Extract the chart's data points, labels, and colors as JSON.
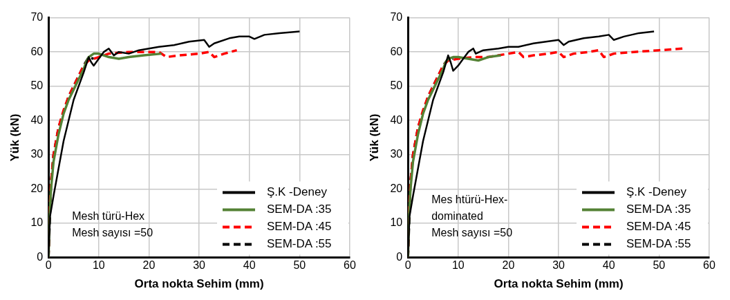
{
  "chart_data": [
    {
      "type": "line",
      "xlabel": "Orta nokta Sehim (mm)",
      "ylabel": "Yük (kN)",
      "xlim": [
        0,
        60
      ],
      "xticks": [
        0,
        10,
        20,
        30,
        40,
        50,
        60
      ],
      "ylim": [
        0,
        70
      ],
      "yticks": [
        0,
        10,
        20,
        30,
        40,
        50,
        60,
        70
      ],
      "grid": true,
      "legend": "bottom right",
      "marker": "none",
      "annotations": [
        "Mesh türü-Hex",
        "Mesh sayısı =50"
      ],
      "series": [
        {
          "name": "Ş.K -Deney",
          "color": "#000000",
          "line_style": "solid",
          "x": [
            0,
            0.3,
            1,
            2,
            3,
            4,
            5,
            6,
            7,
            8,
            8.5,
            9,
            10,
            11,
            12,
            13,
            14,
            16,
            18,
            20,
            22,
            25,
            28,
            31,
            32,
            33,
            36,
            38,
            40,
            41,
            43,
            46,
            50
          ],
          "values": [
            0,
            12,
            18,
            26,
            34,
            40,
            46,
            50,
            54,
            58.5,
            57,
            56,
            58,
            60,
            61,
            59,
            60,
            59.5,
            60.5,
            61,
            61.5,
            62,
            63,
            63.5,
            61.5,
            62.5,
            64,
            64.5,
            64.5,
            63.8,
            65,
            65.5,
            66
          ]
        },
        {
          "name": "SEM-DA :35",
          "color": "#548235",
          "line_style": "solid",
          "x": [
            0,
            0.2,
            0.5,
            1,
            2,
            3,
            4,
            5,
            6,
            7,
            7.5,
            8,
            9,
            10,
            12,
            14,
            16,
            19,
            22.5
          ],
          "values": [
            0,
            12,
            20,
            28,
            36,
            42,
            46,
            49,
            52,
            55,
            57,
            58.5,
            59.5,
            59.5,
            58.5,
            58,
            58.5,
            59,
            59.5
          ]
        },
        {
          "name": "SEM-DA :45",
          "color": "#ff0000",
          "line_style": "dashed",
          "x": [
            0,
            0.2,
            0.5,
            1,
            2,
            3,
            4,
            5,
            6,
            7,
            8,
            10,
            12,
            16,
            20,
            22,
            23.5,
            26,
            30,
            32,
            33,
            35,
            37.5
          ],
          "values": [
            0,
            14,
            22,
            30,
            38,
            43,
            47,
            50,
            53,
            56,
            57.5,
            58.5,
            59.5,
            60,
            60,
            60,
            58.5,
            59,
            59.5,
            60,
            58.5,
            59.5,
            60.5
          ]
        },
        {
          "name": "SEM-DA :55",
          "color": "#000000",
          "line_style": "dashed",
          "x": [
            0,
            0.5,
            1,
            2,
            4,
            6,
            7,
            8,
            9
          ],
          "values": [
            0,
            22,
            30,
            38,
            47,
            53,
            56,
            58.5,
            58
          ]
        }
      ]
    },
    {
      "type": "line",
      "xlabel": "Orta nokta Sehim (mm)",
      "ylabel": "Yük (kN)",
      "xlim": [
        0,
        60
      ],
      "xticks": [
        0,
        10,
        20,
        30,
        40,
        50,
        60
      ],
      "ylim": [
        0,
        70
      ],
      "yticks": [
        0,
        10,
        20,
        30,
        40,
        50,
        60,
        70
      ],
      "grid": true,
      "legend": "bottom right",
      "marker": "none",
      "annotations": [
        "Mes htürü-Hex-",
        "dominated",
        "Mesh sayısı =50"
      ],
      "series": [
        {
          "name": "Ş.K -Deney",
          "color": "#000000",
          "line_style": "solid",
          "x": [
            0,
            0.3,
            1,
            2,
            3,
            4,
            5,
            6,
            7,
            8,
            8.5,
            9,
            10,
            11,
            12,
            13,
            13.5,
            15,
            18,
            20,
            22,
            25,
            30,
            31,
            32,
            35,
            38,
            40,
            41,
            43,
            46,
            49
          ],
          "values": [
            0,
            12,
            18,
            26,
            34,
            40,
            46,
            50,
            54,
            59,
            57,
            54.5,
            56,
            58,
            60,
            61,
            59.5,
            60.5,
            61,
            61.5,
            61.5,
            62.5,
            63.5,
            62,
            63,
            64,
            64.5,
            65,
            63.5,
            64.5,
            65.5,
            66
          ]
        },
        {
          "name": "SEM-DA :35",
          "color": "#548235",
          "line_style": "solid",
          "x": [
            0,
            0.2,
            0.5,
            1,
            2,
            3,
            4,
            5,
            6,
            7,
            7.5,
            8,
            9,
            10,
            12,
            14,
            16,
            18.5
          ],
          "values": [
            0,
            12,
            20,
            28,
            36,
            42,
            46,
            49,
            52,
            55,
            57,
            58,
            58.5,
            58.5,
            58,
            57.5,
            58.5,
            59
          ]
        },
        {
          "name": "SEM-DA :45",
          "color": "#ff0000",
          "line_style": "dashed",
          "x": [
            0,
            0.2,
            0.5,
            1,
            2,
            3,
            4,
            5,
            6,
            7,
            8,
            10,
            13,
            16,
            20,
            22,
            23,
            25,
            28,
            30,
            31,
            33,
            36,
            38,
            39,
            41,
            45,
            50,
            55
          ],
          "values": [
            0,
            14,
            22,
            30,
            38,
            43,
            47,
            50,
            53,
            56,
            57.5,
            58,
            58.5,
            58.5,
            59.5,
            60,
            58.5,
            59,
            59.5,
            60,
            58.5,
            59.5,
            60,
            60.5,
            58.5,
            59.5,
            60,
            60.5,
            61
          ]
        },
        {
          "name": "SEM-DA :55",
          "color": "#000000",
          "line_style": "dashed",
          "x": [
            0,
            0.5,
            1,
            2,
            4,
            6,
            7,
            8,
            9
          ],
          "values": [
            0,
            22,
            30,
            38,
            47,
            53,
            56,
            58,
            58
          ]
        }
      ]
    }
  ]
}
